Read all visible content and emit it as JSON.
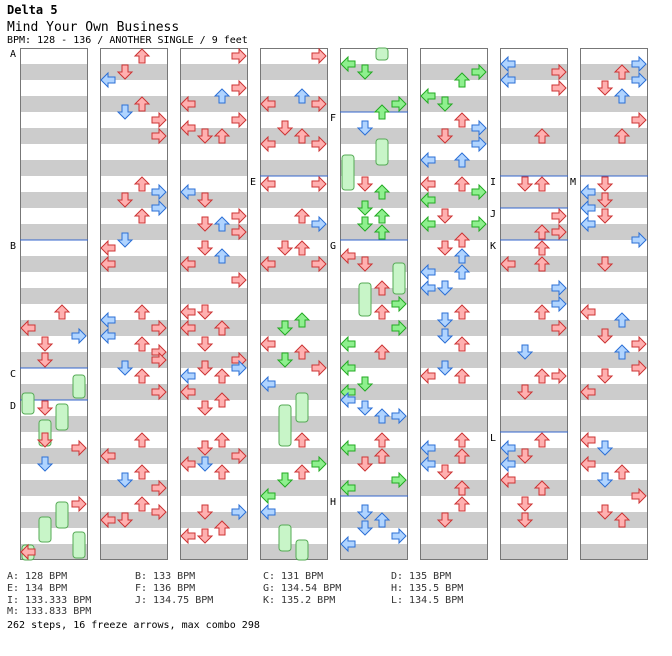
{
  "game_title": "Delta 5",
  "song_title": "Mind Your Own Business",
  "song_info": "BPM: 128 - 136 / ANOTHER SINGLE / 9 feet",
  "section_labels": [
    "A",
    "B",
    "C",
    "D",
    "E",
    "F",
    "G",
    "H",
    "I",
    "J",
    "K",
    "L",
    "M"
  ],
  "bpm_legend": [
    "A: 128 BPM",
    "B: 133 BPM",
    "C: 131 BPM",
    "D: 135 BPM",
    "E: 134 BPM",
    "F: 136 BPM",
    "G: 134.54 BPM",
    "H: 135.5 BPM",
    "I: 133.333 BPM",
    "J: 134.75 BPM",
    "K: 135.2 BPM",
    "L: 134.5 BPM",
    "M: 133.833 BPM"
  ],
  "stats": "262 steps, 16 freeze arrows, max combo 298",
  "colors": {
    "stripe": "#cccccc",
    "lane_border": "#777777",
    "measure_line": "#3366cc",
    "arrow_red": "#ffb0b0",
    "arrow_red_stroke": "#cc3333",
    "arrow_blue": "#b0d4ff",
    "arrow_blue_stroke": "#2b6fd6",
    "arrow_green": "#8ef08e",
    "arrow_green_stroke": "#22aa22",
    "freeze_fill": "#c8f5c8",
    "freeze_stroke": "#55aa55"
  },
  "icons": [
    "arrow-left-icon",
    "arrow-down-icon",
    "arrow-up-icon",
    "arrow-right-icon",
    "freeze-arrow-icon"
  ]
}
